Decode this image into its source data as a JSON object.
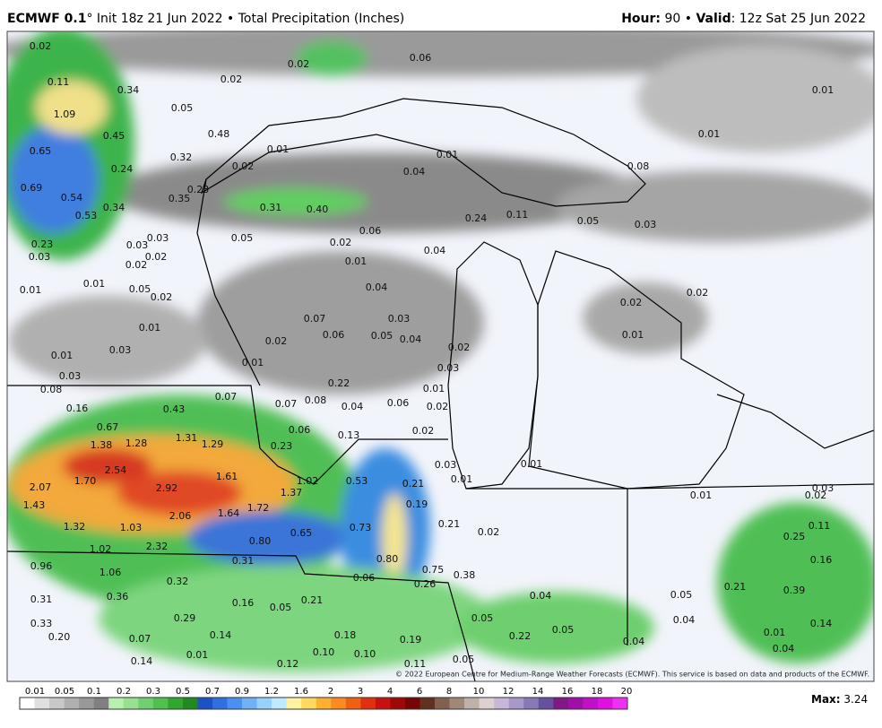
{
  "header": {
    "model": "ECMWF 0.1",
    "run": "° Init 18z 21 Jun 2022 • Total Precipitation (Inches)",
    "hour_label": "Hour:",
    "hour_value": "90 •",
    "valid_label": "Valid",
    "valid_value": ": 12z Sat 25 Jun 2022"
  },
  "map": {
    "labels": [
      "0.02",
      "0.11",
      "0.34",
      "0.05",
      "0.02",
      "0.02",
      "0.06",
      "0.01",
      "1.09",
      "0.45",
      "0.48",
      "0.01",
      "0.65",
      "0.32",
      "0.01",
      "0.24",
      "0.02",
      "0.01",
      "0.04",
      "0.08",
      "0.69",
      "0.54",
      "0.23",
      "0.35",
      "0.34",
      "0.31",
      "0.40",
      "0.53",
      "0.24",
      "0.11",
      "0.05",
      "0.03",
      "0.06",
      "0.23",
      "0.03",
      "0.03",
      "0.05",
      "0.02",
      "0.04",
      "0.03",
      "0.02",
      "0.02",
      "0.01",
      "0.01",
      "0.01",
      "0.05",
      "0.02",
      "0.04",
      "0.02",
      "0.02",
      "0.07",
      "0.03",
      "0.01",
      "0.06",
      "0.05",
      "0.04",
      "0.01",
      "0.02",
      "0.03",
      "0.02",
      "0.01",
      "0.01",
      "0.03",
      "0.03",
      "0.22",
      "0.01",
      "0.08",
      "0.07",
      "0.07",
      "0.08",
      "0.04",
      "0.06",
      "0.02",
      "0.16",
      "0.43",
      "0.67",
      "0.06",
      "0.13",
      "0.02",
      "1.38",
      "1.28",
      "1.31",
      "1.29",
      "0.23",
      "0.03",
      "0.01",
      "2.54",
      "1.61",
      "0.01",
      "2.07",
      "1.70",
      "2.92",
      "1.02",
      "0.53",
      "0.21",
      "1.37",
      "0.01",
      "0.02",
      "0.03",
      "1.43",
      "2.06",
      "1.64",
      "1.72",
      "0.19",
      "1.32",
      "1.03",
      "0.65",
      "0.73",
      "0.21",
      "0.02",
      "0.11",
      "0.25",
      "2.32",
      "1.02",
      "0.80",
      "0.96",
      "0.31",
      "0.80",
      "0.16",
      "1.06",
      "0.75",
      "0.38",
      "0.32",
      "0.06",
      "0.26",
      "0.21",
      "0.39",
      "0.31",
      "0.36",
      "0.16",
      "0.21",
      "0.04",
      "0.05",
      "0.05",
      "0.33",
      "0.29",
      "0.05",
      "0.04",
      "0.14",
      "0.20",
      "0.07",
      "0.14",
      "0.18",
      "0.22",
      "0.05",
      "0.19",
      "0.01",
      "0.04",
      "0.04",
      "0.01",
      "0.14",
      "0.12",
      "0.10",
      "0.10",
      "0.05",
      "0.11"
    ],
    "credit": "© 2022 European Centre for Medium-Range Weather Forecasts (ECMWF). This service is based on data and products of the ECMWF."
  },
  "legend": {
    "ticks": [
      "0.01",
      "0.05",
      "0.1",
      "0.2",
      "0.3",
      "0.5",
      "0.7",
      "0.9",
      "1.2",
      "1.6",
      "2",
      "3",
      "4",
      "6",
      "8",
      "10",
      "12",
      "14",
      "16",
      "18",
      "20"
    ],
    "max_label": "Max:",
    "max_value": "3.24"
  }
}
